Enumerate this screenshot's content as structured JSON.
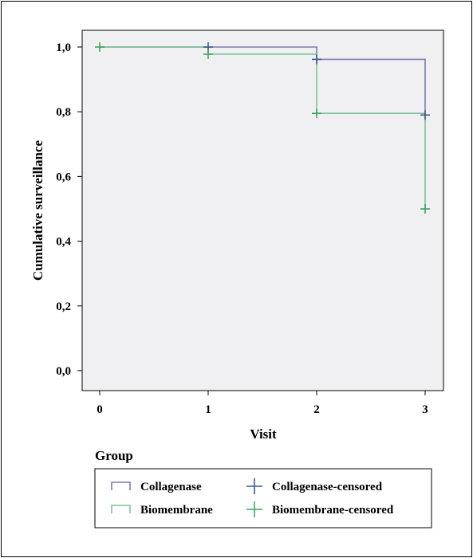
{
  "chart_data": {
    "type": "line",
    "subtype": "kaplan-meier step",
    "title": "",
    "xlabel": "Visit",
    "ylabel": "Cumulative surveillance",
    "xlim": [
      0,
      3
    ],
    "ylim": [
      0,
      1
    ],
    "x_ticks": [
      0,
      1,
      2,
      3
    ],
    "x_tick_labels": [
      "0",
      "1",
      "2",
      "3"
    ],
    "y_ticks": [
      0,
      0.2,
      0.4,
      0.6,
      0.8,
      1.0
    ],
    "y_tick_labels": [
      "0,0",
      "0,2",
      "0,4",
      "0,6",
      "0,8",
      "1,0"
    ],
    "grid": false,
    "plot_background": "#f0f0f3",
    "series": [
      {
        "name": "Collagenase",
        "color": "#7c7aa8",
        "steps": [
          [
            0,
            1.0
          ],
          [
            2,
            0.962
          ],
          [
            3,
            0.79
          ]
        ],
        "censored": [
          [
            1,
            1.0
          ],
          [
            2,
            0.962
          ],
          [
            3,
            0.79
          ]
        ],
        "censored_name": "Collagenase-censored",
        "censored_color": "#3b5a8f"
      },
      {
        "name": "Biomembrane",
        "color": "#7cc497",
        "steps": [
          [
            0,
            1.0
          ],
          [
            1,
            0.978
          ],
          [
            2,
            0.795
          ],
          [
            3,
            0.5
          ]
        ],
        "censored": [
          [
            0,
            1.0
          ],
          [
            1,
            0.978
          ],
          [
            2,
            0.795
          ],
          [
            3,
            0.5
          ]
        ],
        "censored_name": "Biomembrane-censored",
        "censored_color": "#3aa85a"
      }
    ],
    "legend": {
      "title": "Group",
      "placement": "bottom",
      "entries": [
        "Collagenase",
        "Collagenase-censored",
        "Biomembrane",
        "Biomembrane-censored"
      ]
    }
  }
}
